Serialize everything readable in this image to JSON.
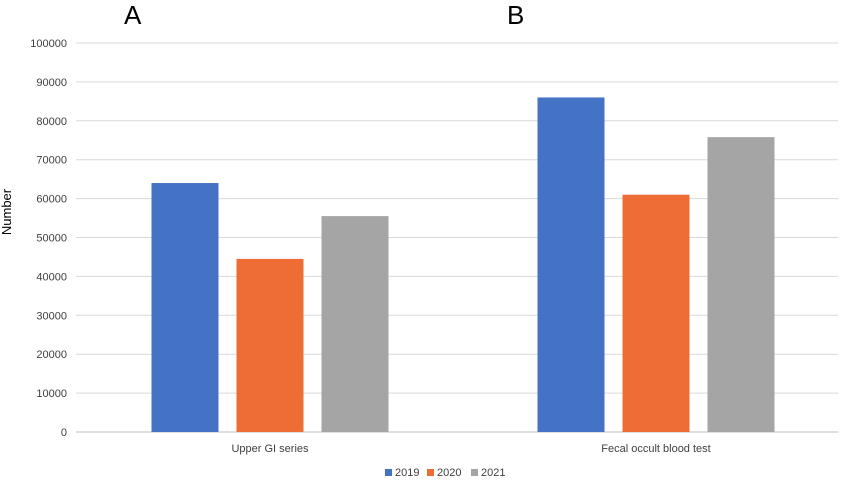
{
  "chart_data": {
    "type": "bar",
    "panel_labels": [
      "A",
      "B"
    ],
    "categories": [
      "Upper GI series",
      "Fecal occult blood test"
    ],
    "series": [
      {
        "name": "2019",
        "color": "#4472c4",
        "values": [
          64000,
          86000
        ]
      },
      {
        "name": "2020",
        "color": "#ed6d35",
        "values": [
          44500,
          61000
        ]
      },
      {
        "name": "2021",
        "color": "#a5a5a5",
        "values": [
          55500,
          75800
        ]
      }
    ],
    "ylabel": "Number",
    "ylim": [
      0,
      100000
    ],
    "yticks": [
      "0",
      "10000",
      "20000",
      "30000",
      "40000",
      "50000",
      "60000",
      "70000",
      "80000",
      "90000",
      "100000"
    ],
    "grid": true,
    "legend_position": "bottom"
  }
}
